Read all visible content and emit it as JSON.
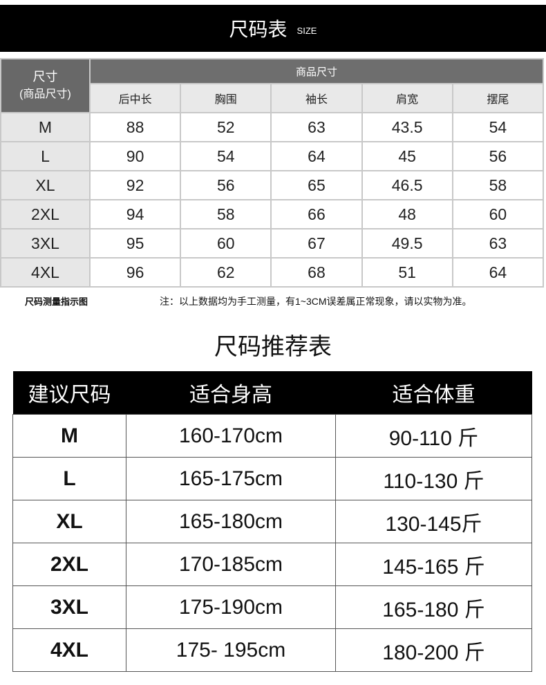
{
  "banner": {
    "title": "尺码表",
    "subtitle": "SIZE"
  },
  "size_table": {
    "corner_label": "尺寸",
    "corner_sub": "(商品尺寸)",
    "group_header": "商品尺寸",
    "columns": [
      "后中长",
      "胸围",
      "袖长",
      "肩宽",
      "摆尾"
    ],
    "rows": [
      {
        "size": "M",
        "values": [
          "88",
          "52",
          "63",
          "43.5",
          "54"
        ]
      },
      {
        "size": "L",
        "values": [
          "90",
          "54",
          "64",
          "45",
          "56"
        ]
      },
      {
        "size": "XL",
        "values": [
          "92",
          "56",
          "65",
          "46.5",
          "58"
        ]
      },
      {
        "size": "2XL",
        "values": [
          "94",
          "58",
          "66",
          "48",
          "60"
        ]
      },
      {
        "size": "3XL",
        "values": [
          "95",
          "60",
          "67",
          "49.5",
          "63"
        ]
      },
      {
        "size": "4XL",
        "values": [
          "96",
          "62",
          "68",
          "51",
          "64"
        ]
      }
    ]
  },
  "notes": {
    "left": "尺码测量指示图",
    "right": "注：以上数据均为手工测量，有1~3CM误差属正常现象，请以实物为准。"
  },
  "recommend": {
    "title": "尺码推荐表",
    "headers": [
      "建议尺码",
      "适合身高",
      "适合体重"
    ],
    "rows": [
      [
        "M",
        "160-170cm",
        "90-110 斤"
      ],
      [
        "L",
        "165-175cm",
        "110-130 斤"
      ],
      [
        "XL",
        "165-180cm",
        "130-145斤"
      ],
      [
        "2XL",
        "170-185cm",
        "145-165 斤"
      ],
      [
        "3XL",
        "175-190cm",
        "165-180 斤"
      ],
      [
        "4XL",
        "175- 195cm",
        "180-200 斤"
      ]
    ]
  }
}
